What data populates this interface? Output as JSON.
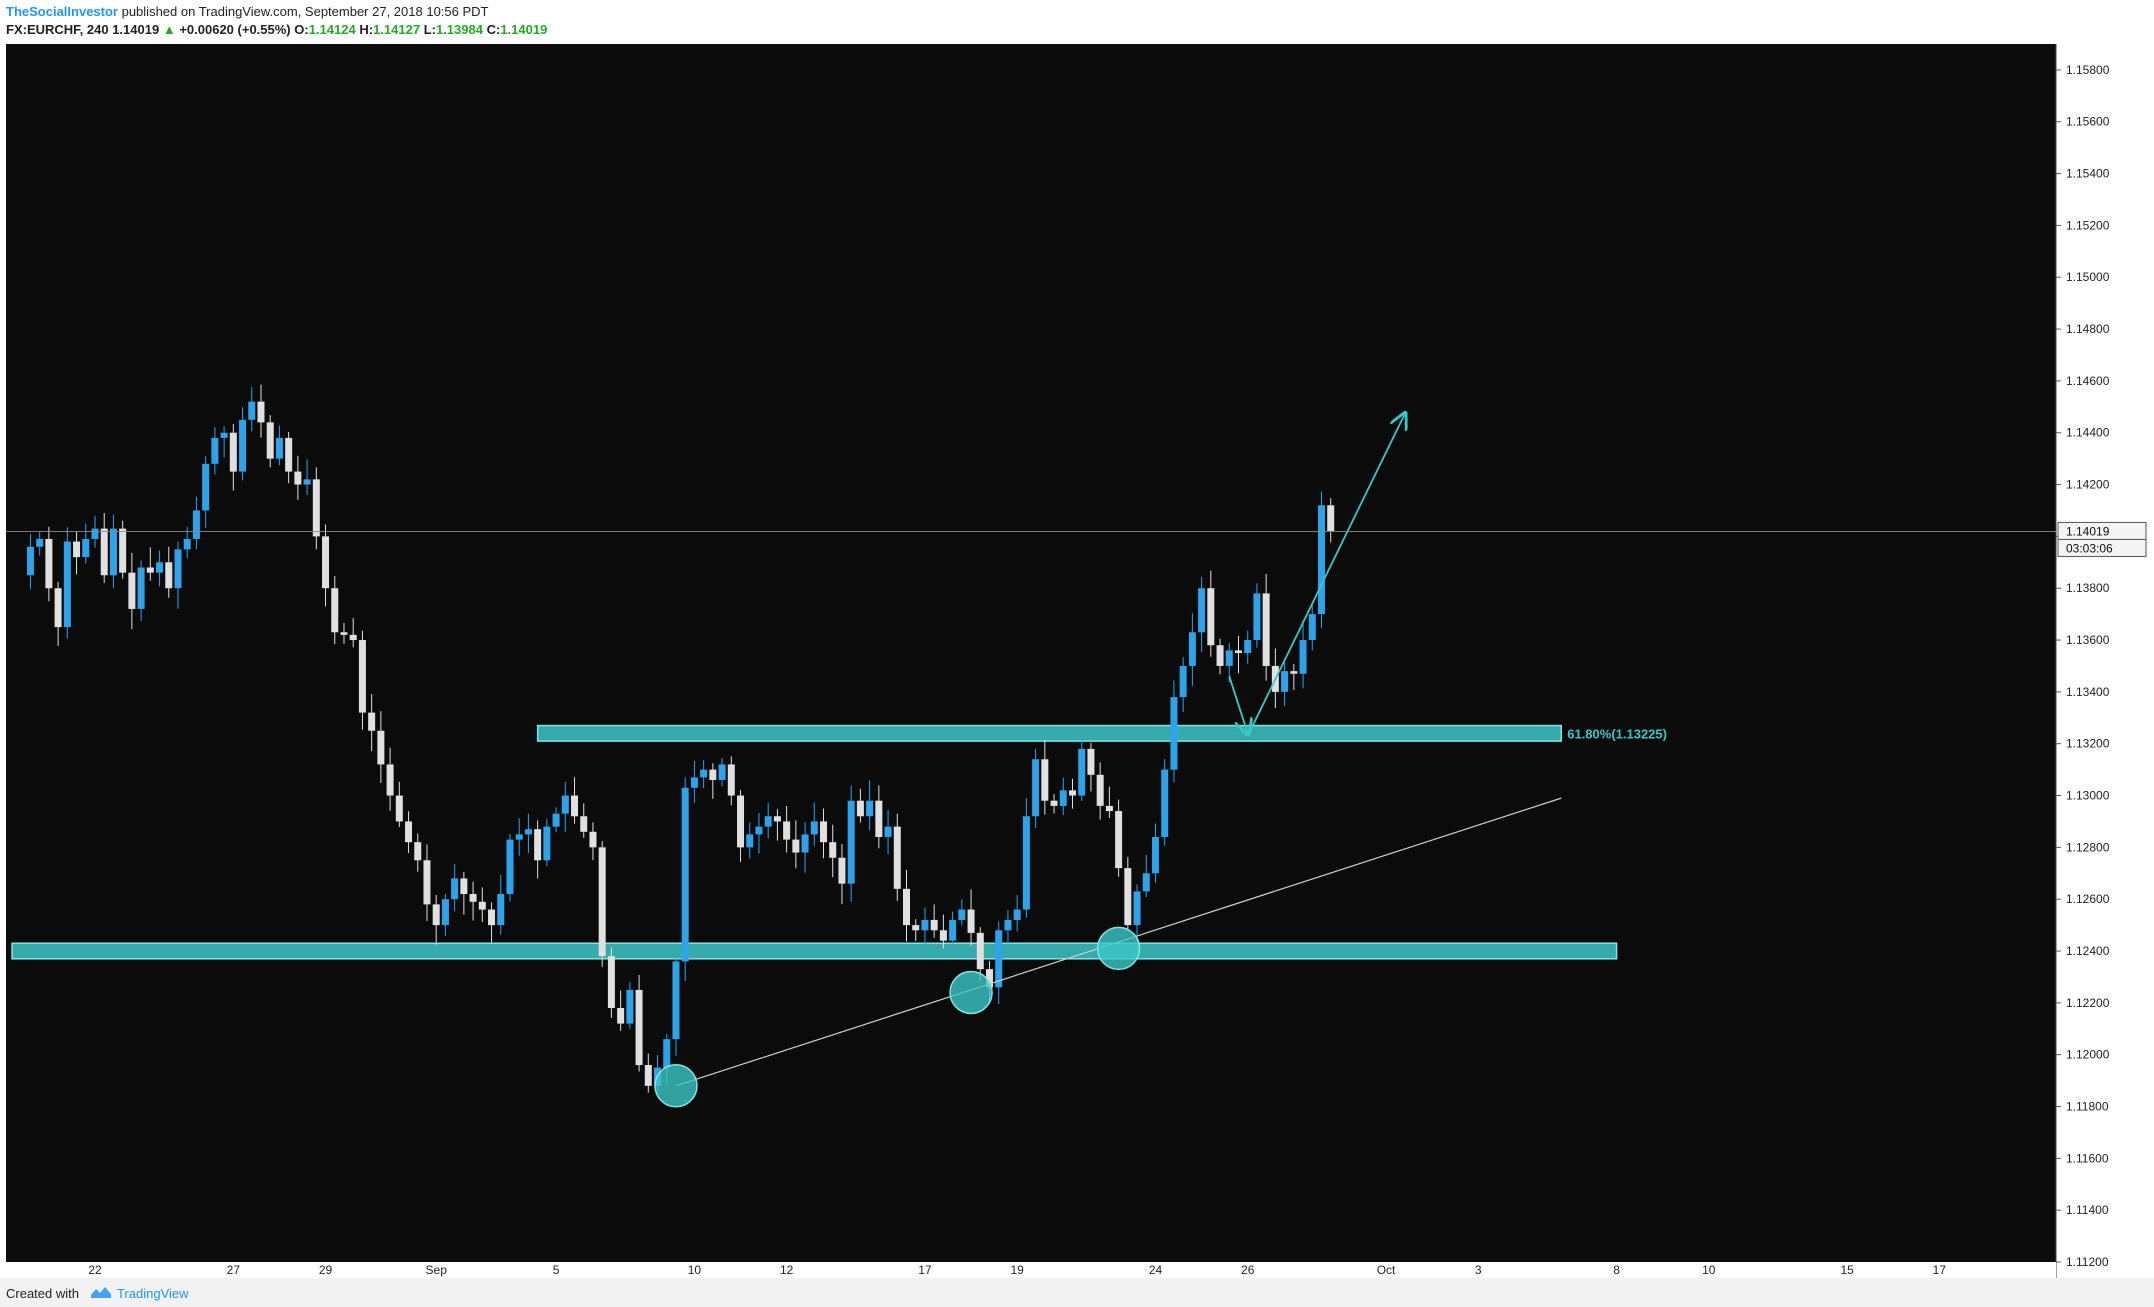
{
  "header": {
    "author": "TheSocialInvestor",
    "published": " published on TradingView.com, September 27, 2018 10:56 PDT",
    "symbol": "FX:EURCHF, 240",
    "price": "1.14019",
    "change": "+0.00620 (+0.55%)",
    "o_label": "O:",
    "o_value": "1.14124",
    "h_label": "H:",
    "h_value": "1.14127",
    "l_label": "L:",
    "l_value": "1.13984",
    "c_label": "C:",
    "c_value": "1.14019"
  },
  "footer": {
    "created_with": "Created with",
    "brand": "TradingView"
  },
  "colors": {
    "background": "#0b0b0b",
    "bull": "#2fa3ea",
    "bear": "#e0e0e0",
    "zone": "#3cc7c7",
    "axis_text": "#222222",
    "annotation": "#3cc7c7"
  },
  "chart_data": {
    "type": "candlestick",
    "symbol": "FX:EURCHF",
    "timeframe": "240",
    "ylim": [
      1.112,
      1.159
    ],
    "y_ticks": [
      "1.15800",
      "1.15600",
      "1.15400",
      "1.15200",
      "1.15000",
      "1.14800",
      "1.14600",
      "1.14400",
      "1.14200",
      "1.14000",
      "1.13800",
      "1.13600",
      "1.13400",
      "1.13200",
      "1.13000",
      "1.12800",
      "1.12600",
      "1.12400",
      "1.12200",
      "1.12000",
      "1.11800",
      "1.11600",
      "1.11400",
      "1.11200"
    ],
    "x_ticks": [
      {
        "label": "22",
        "x": 9
      },
      {
        "label": "27",
        "x": 24
      },
      {
        "label": "29",
        "x": 34
      },
      {
        "label": "Sep",
        "x": 46
      },
      {
        "label": "5",
        "x": 59
      },
      {
        "label": "10",
        "x": 74
      },
      {
        "label": "12",
        "x": 84
      },
      {
        "label": "17",
        "x": 99
      },
      {
        "label": "19",
        "x": 109
      },
      {
        "label": "24",
        "x": 124
      },
      {
        "label": "26",
        "x": 134
      },
      {
        "label": "Oct",
        "x": 149
      },
      {
        "label": "3",
        "x": 159
      },
      {
        "label": "8",
        "x": 174
      },
      {
        "label": "10",
        "x": 184
      },
      {
        "label": "15",
        "x": 199
      },
      {
        "label": "17",
        "x": 209
      }
    ],
    "x_range": [
      0,
      221
    ],
    "last_price": 1.14019,
    "last_price_label": "1.14019",
    "countdown_label": "03:03:06",
    "ohlc_anchors": [
      [
        0,
        1.1385
      ],
      [
        2,
        1.1396
      ],
      [
        3,
        1.1399
      ],
      [
        4,
        1.138
      ],
      [
        5,
        1.1365
      ],
      [
        6,
        1.1398
      ],
      [
        7,
        1.1392
      ],
      [
        8,
        1.1399
      ],
      [
        9,
        1.1403
      ],
      [
        10,
        1.1385
      ],
      [
        11,
        1.1403
      ],
      [
        12,
        1.1386
      ],
      [
        13,
        1.1372
      ],
      [
        14,
        1.1388
      ],
      [
        15,
        1.1386
      ],
      [
        16,
        1.139
      ],
      [
        17,
        1.138
      ],
      [
        18,
        1.1395
      ],
      [
        19,
        1.1399
      ],
      [
        20,
        1.141
      ],
      [
        21,
        1.1428
      ],
      [
        22,
        1.1438
      ],
      [
        23,
        1.144
      ],
      [
        24,
        1.1425
      ],
      [
        25,
        1.1445
      ],
      [
        26,
        1.1452
      ],
      [
        27,
        1.1444
      ],
      [
        28,
        1.143
      ],
      [
        29,
        1.1438
      ],
      [
        30,
        1.1425
      ],
      [
        31,
        1.142
      ],
      [
        32,
        1.1422
      ],
      [
        33,
        1.14
      ],
      [
        34,
        1.138
      ],
      [
        35,
        1.1363
      ],
      [
        36,
        1.1362
      ],
      [
        37,
        1.136
      ],
      [
        38,
        1.1332
      ],
      [
        39,
        1.1325
      ],
      [
        40,
        1.1312
      ],
      [
        41,
        1.13
      ],
      [
        42,
        1.129
      ],
      [
        43,
        1.1282
      ],
      [
        44,
        1.1275
      ],
      [
        45,
        1.1258
      ],
      [
        46,
        1.125
      ],
      [
        47,
        1.126
      ],
      [
        48,
        1.1268
      ],
      [
        49,
        1.1262
      ],
      [
        50,
        1.1259
      ],
      [
        51,
        1.1256
      ],
      [
        52,
        1.125
      ],
      [
        53,
        1.1262
      ],
      [
        54,
        1.1283
      ],
      [
        55,
        1.1285
      ],
      [
        56,
        1.1287
      ],
      [
        57,
        1.1275
      ],
      [
        58,
        1.1288
      ],
      [
        59,
        1.1293
      ],
      [
        60,
        1.13
      ],
      [
        61,
        1.1292
      ],
      [
        62,
        1.1286
      ],
      [
        63,
        1.128
      ],
      [
        64,
        1.1238
      ],
      [
        65,
        1.1218
      ],
      [
        66,
        1.1212
      ],
      [
        67,
        1.1225
      ],
      [
        68,
        1.1196
      ],
      [
        69,
        1.1188
      ],
      [
        70,
        1.1195
      ],
      [
        71,
        1.1206
      ],
      [
        72,
        1.1236
      ],
      [
        73,
        1.1303
      ],
      [
        74,
        1.1307
      ],
      [
        75,
        1.131
      ],
      [
        76,
        1.1306
      ],
      [
        77,
        1.1312
      ],
      [
        78,
        1.13
      ],
      [
        79,
        1.128
      ],
      [
        80,
        1.1285
      ],
      [
        81,
        1.1288
      ],
      [
        82,
        1.1292
      ],
      [
        83,
        1.129
      ],
      [
        84,
        1.1283
      ],
      [
        85,
        1.1278
      ],
      [
        86,
        1.1285
      ],
      [
        87,
        1.129
      ],
      [
        88,
        1.1282
      ],
      [
        89,
        1.1276
      ],
      [
        90,
        1.1266
      ],
      [
        91,
        1.1298
      ],
      [
        92,
        1.1292
      ],
      [
        93,
        1.1298
      ],
      [
        94,
        1.1284
      ],
      [
        95,
        1.1288
      ],
      [
        96,
        1.1264
      ],
      [
        97,
        1.125
      ],
      [
        98,
        1.1248
      ],
      [
        99,
        1.1252
      ],
      [
        100,
        1.1248
      ],
      [
        101,
        1.1244
      ],
      [
        102,
        1.1252
      ],
      [
        103,
        1.1256
      ],
      [
        104,
        1.1247
      ],
      [
        105,
        1.1233
      ],
      [
        106,
        1.1226
      ],
      [
        107,
        1.1248
      ],
      [
        108,
        1.1252
      ],
      [
        109,
        1.1256
      ],
      [
        110,
        1.1292
      ],
      [
        111,
        1.1314
      ],
      [
        112,
        1.1298
      ],
      [
        113,
        1.1296
      ],
      [
        114,
        1.1302
      ],
      [
        115,
        1.13
      ],
      [
        116,
        1.1318
      ],
      [
        117,
        1.1308
      ],
      [
        118,
        1.1296
      ],
      [
        119,
        1.1294
      ],
      [
        120,
        1.1272
      ],
      [
        121,
        1.125
      ],
      [
        122,
        1.1263
      ],
      [
        123,
        1.127
      ],
      [
        124,
        1.1284
      ],
      [
        125,
        1.131
      ],
      [
        126,
        1.1338
      ],
      [
        127,
        1.135
      ],
      [
        128,
        1.1363
      ],
      [
        129,
        1.138
      ],
      [
        130,
        1.1358
      ],
      [
        131,
        1.135
      ],
      [
        132,
        1.1356
      ],
      [
        133,
        1.1355
      ],
      [
        134,
        1.136
      ],
      [
        135,
        1.1378
      ],
      [
        136,
        1.135
      ],
      [
        137,
        1.134
      ],
      [
        138,
        1.1348
      ],
      [
        139,
        1.1347
      ],
      [
        140,
        1.136
      ],
      [
        141,
        1.137
      ],
      [
        142,
        1.1412
      ],
      [
        143,
        1.1402
      ]
    ],
    "zones": [
      {
        "x0": 57,
        "x1": 168,
        "y_top": 1.1327,
        "y_bottom": 1.1321,
        "label": "61.80%(1.13225)"
      },
      {
        "x0": 0,
        "x1": 174,
        "y_top": 1.1243,
        "y_bottom": 1.1237,
        "label": ""
      }
    ],
    "trendline": {
      "x0": 72,
      "y0": 1.1188,
      "x1": 168,
      "y1": 1.1299
    },
    "circles": [
      {
        "x": 72,
        "y": 1.1188
      },
      {
        "x": 104,
        "y": 1.1224
      },
      {
        "x": 120,
        "y": 1.1241
      }
    ],
    "arrows": [
      {
        "x0": 132,
        "y0": 1.1346,
        "x1": 134,
        "y1": 1.1324
      },
      {
        "x0": 134,
        "y0": 1.1323,
        "x1": 151,
        "y1": 1.1447
      }
    ]
  }
}
